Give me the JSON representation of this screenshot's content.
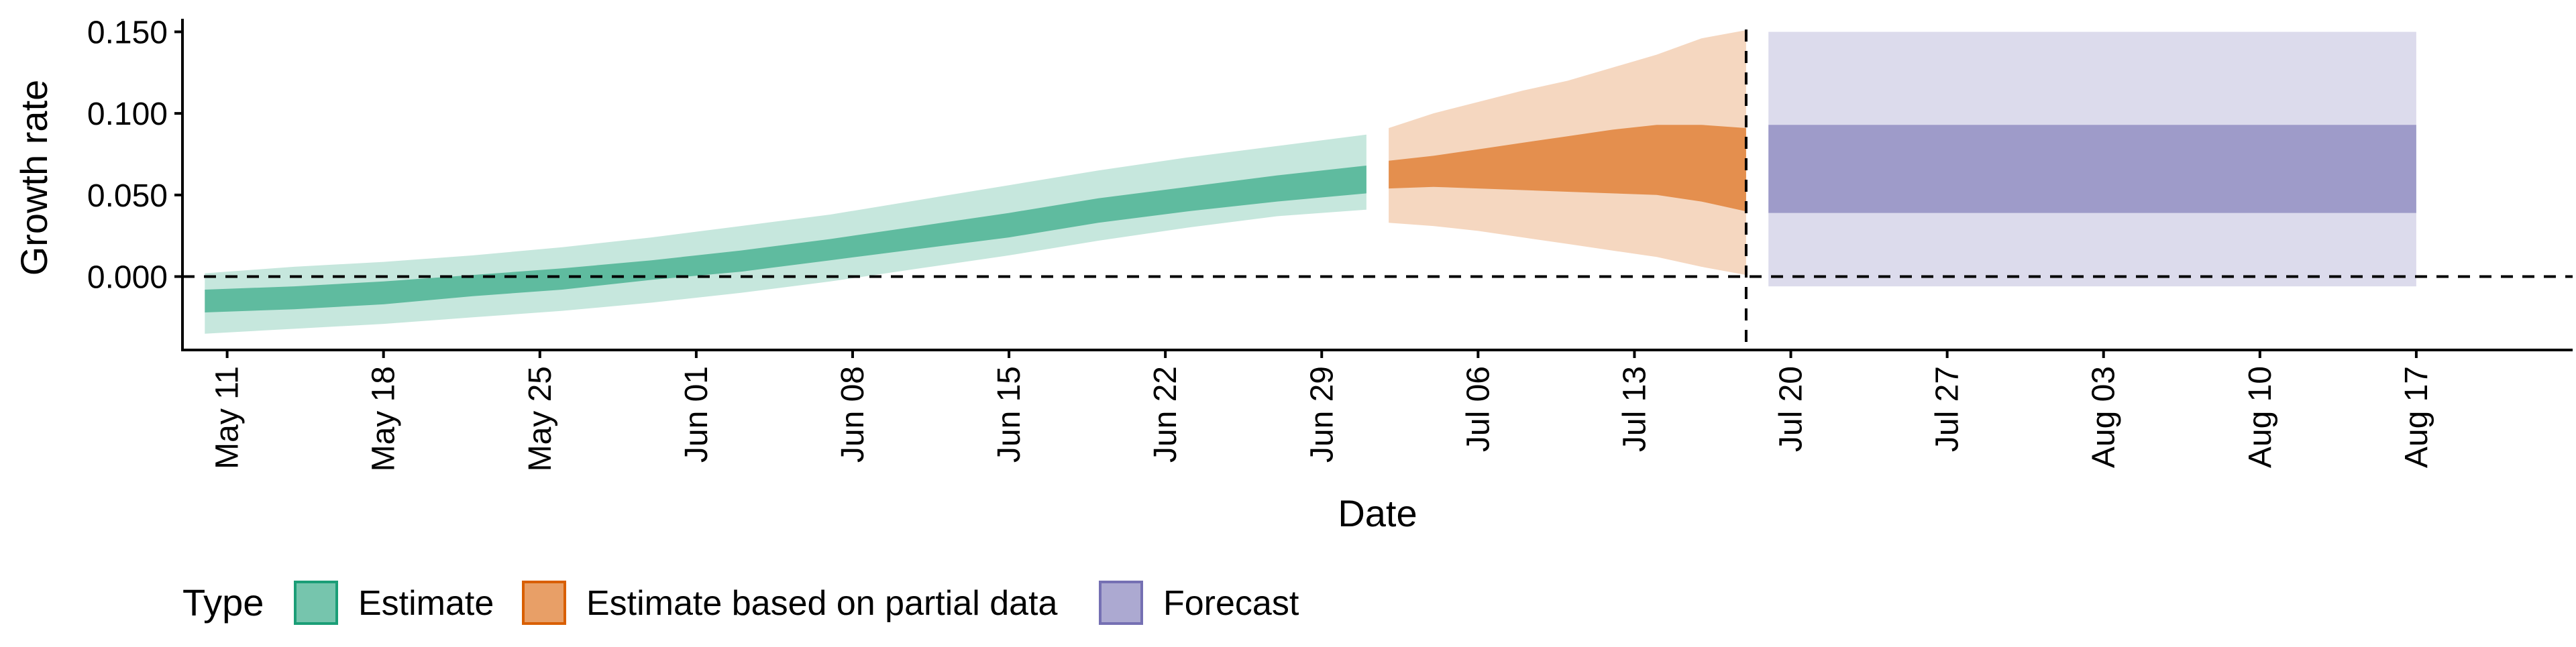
{
  "chart_data": {
    "type": "area",
    "title": "",
    "xlabel": "Date",
    "ylabel": "Growth rate",
    "ylim": [
      -0.045,
      0.158
    ],
    "y_ticks": [
      "0.000",
      "0.050",
      "0.100",
      "0.150"
    ],
    "x_tick_labels": [
      "May 11",
      "May 18",
      "May 25",
      "Jun 01",
      "Jun 08",
      "Jun 15",
      "Jun 22",
      "Jun 29",
      "Jul 06",
      "Jul 13",
      "Jul 20",
      "Jul 27",
      "Aug 03",
      "Aug 10",
      "Aug 17"
    ],
    "x_range": [
      "2020-05-09",
      "2020-08-24"
    ],
    "reference_lines": {
      "horizontal_y": 0,
      "vertical_date": "2020-07-18",
      "style": "dashed"
    },
    "grid": false,
    "legend": {
      "title": "Type",
      "position": "bottom-left"
    },
    "colors": {
      "Estimate": "#1b9e77",
      "Estimate based on partial data": "#d95f02",
      "Forecast": "#7570b3"
    },
    "series": [
      {
        "name": "Estimate",
        "dates": [
          "2020-05-10",
          "2020-05-14",
          "2020-05-18",
          "2020-05-22",
          "2020-05-26",
          "2020-05-30",
          "2020-06-03",
          "2020-06-07",
          "2020-06-11",
          "2020-06-15",
          "2020-06-19",
          "2020-06-23",
          "2020-06-27",
          "2020-07-01"
        ],
        "median_band": {
          "lower": [
            -0.022,
            -0.02,
            -0.017,
            -0.012,
            -0.008,
            -0.002,
            0.003,
            0.01,
            0.017,
            0.024,
            0.033,
            0.04,
            0.046,
            0.051
          ],
          "upper": [
            -0.008,
            -0.006,
            -0.003,
            0.001,
            0.005,
            0.01,
            0.016,
            0.023,
            0.031,
            0.039,
            0.048,
            0.055,
            0.062,
            0.068
          ]
        },
        "outer_band": {
          "lower": [
            -0.035,
            -0.032,
            -0.029,
            -0.025,
            -0.021,
            -0.016,
            -0.01,
            -0.003,
            0.005,
            0.013,
            0.022,
            0.03,
            0.037,
            0.041
          ],
          "upper": [
            0.002,
            0.006,
            0.009,
            0.013,
            0.018,
            0.024,
            0.031,
            0.038,
            0.047,
            0.056,
            0.065,
            0.073,
            0.08,
            0.087
          ]
        }
      },
      {
        "name": "Estimate based on partial data",
        "dates": [
          "2020-07-02",
          "2020-07-04",
          "2020-07-06",
          "2020-07-08",
          "2020-07-10",
          "2020-07-12",
          "2020-07-14",
          "2020-07-16",
          "2020-07-18"
        ],
        "median_band": {
          "lower": [
            0.054,
            0.055,
            0.054,
            0.053,
            0.052,
            0.051,
            0.05,
            0.046,
            0.04
          ],
          "upper": [
            0.071,
            0.074,
            0.078,
            0.082,
            0.086,
            0.09,
            0.093,
            0.093,
            0.091
          ]
        },
        "outer_band": {
          "lower": [
            0.033,
            0.031,
            0.028,
            0.024,
            0.02,
            0.016,
            0.012,
            0.006,
            0.001
          ],
          "upper": [
            0.091,
            0.1,
            0.107,
            0.114,
            0.12,
            0.128,
            0.136,
            0.146,
            0.151
          ]
        }
      },
      {
        "name": "Forecast",
        "dates": [
          "2020-07-19",
          "2020-08-17"
        ],
        "median_band": {
          "lower": [
            0.039,
            0.039
          ],
          "upper": [
            0.093,
            0.093
          ]
        },
        "outer_band": {
          "lower": [
            -0.006,
            -0.006
          ],
          "upper": [
            0.15,
            0.15
          ]
        }
      }
    ]
  }
}
